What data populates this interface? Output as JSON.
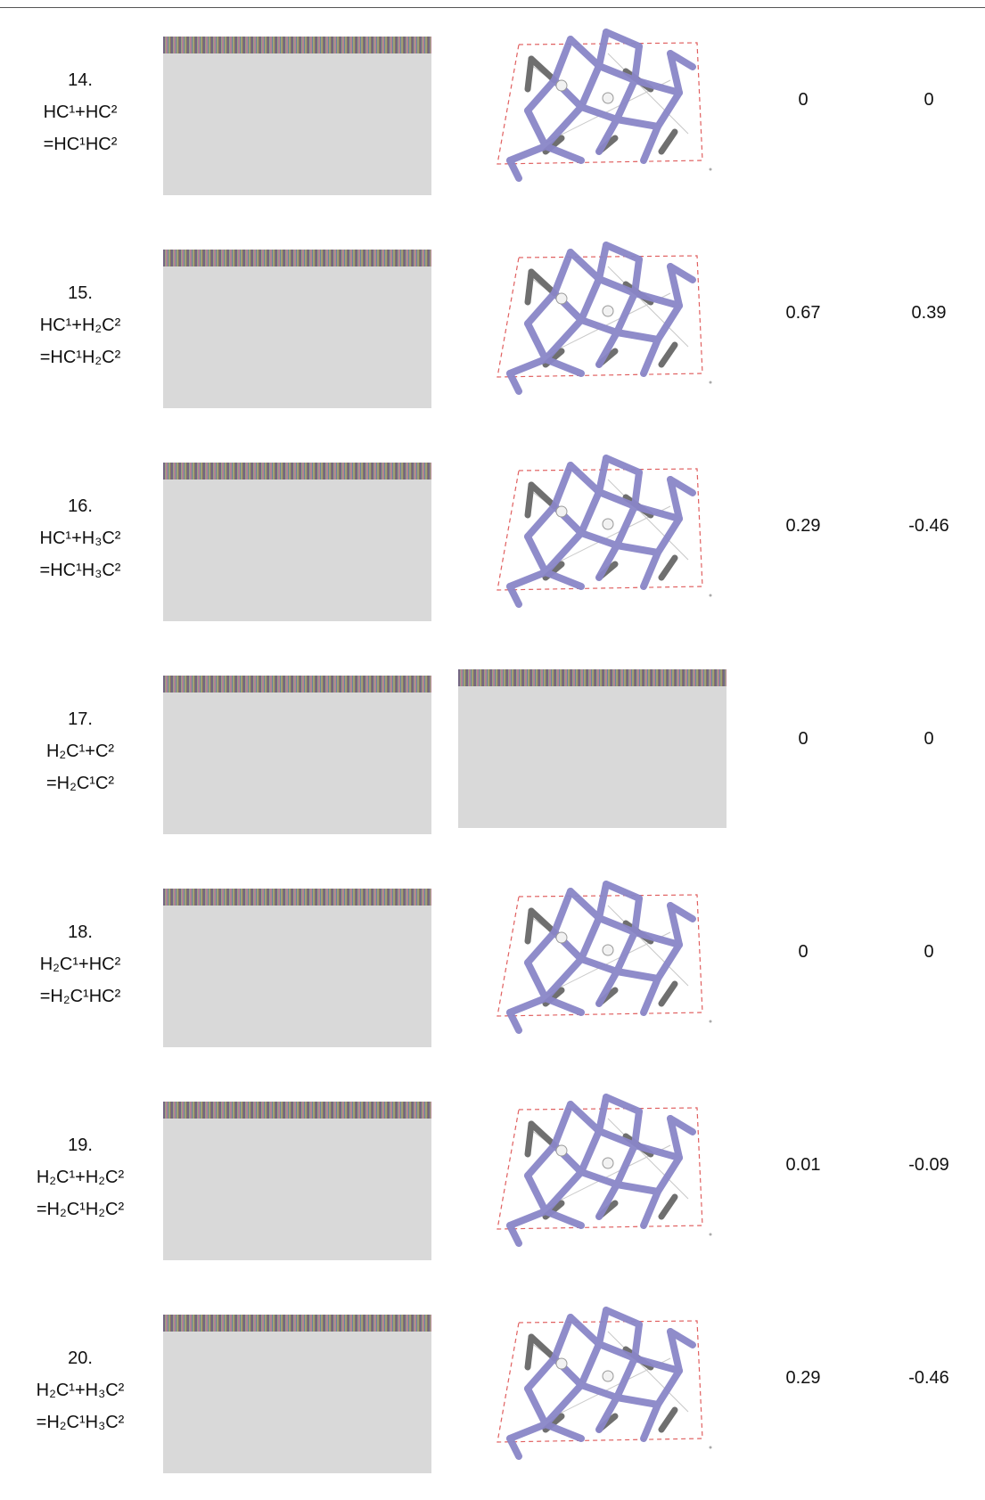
{
  "table": {
    "rows": [
      {
        "number": "14.",
        "reaction": "HC¹+HC²",
        "product": "=HC¹HC²",
        "values": [
          "0",
          "0"
        ]
      },
      {
        "number": "15.",
        "reaction": "HC¹+H₂C²",
        "product": "=HC¹H₂C²",
        "values": [
          "0.67",
          "0.39"
        ]
      },
      {
        "number": "16.",
        "reaction": "HC¹+H₃C²",
        "product": "=HC¹H₃C²",
        "values": [
          "0.29",
          "-0.46"
        ]
      },
      {
        "number": "17.",
        "reaction": "H₂C¹+C²",
        "product": "=H₂C¹C²",
        "values": [
          "0",
          "0"
        ]
      },
      {
        "number": "18.",
        "reaction": "H₂C¹+HC²",
        "product": "=H₂C¹HC²",
        "values": [
          "0",
          "0"
        ]
      },
      {
        "number": "19.",
        "reaction": "H₂C¹+H₂C²",
        "product": "=H₂C¹H₂C²",
        "values": [
          "0.01",
          "-0.09"
        ]
      },
      {
        "number": "20.",
        "reaction": "H₂C¹+H₃C²",
        "product": "=H₂C¹H₃C²",
        "values": [
          "0.29",
          "-0.46"
        ]
      }
    ]
  }
}
